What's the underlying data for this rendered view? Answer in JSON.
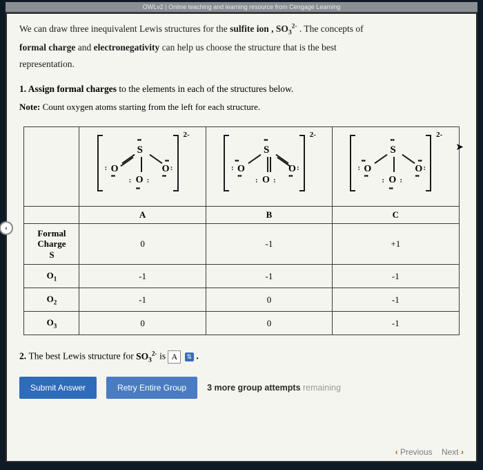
{
  "topbar": "OWLv2 | Online teaching and learning resource from Cengage Learning",
  "intro": {
    "line1_a": "We can draw three inequivalent Lewis structures for the ",
    "line1_b": "sulfite ion , SO",
    "line1_c": " . The concepts of",
    "line2_a": "formal charge",
    "line2_b": " and ",
    "line2_c": "electronegativity",
    "line2_d": " can help us choose the structure that is the best",
    "line3": "representation."
  },
  "q1": {
    "num": "1. ",
    "bold": "Assign formal charges",
    "rest": " to the elements in each of the structures below."
  },
  "note": {
    "label": "Note:",
    "text": " Count oxygen atoms starting from the left for each structure."
  },
  "charge_label": "2-",
  "columns": {
    "A": "A",
    "B": "B",
    "C": "C"
  },
  "rows": {
    "fc_s": "Formal Charge S",
    "o1": "O₁",
    "o2": "O₂",
    "o3": "O₃"
  },
  "values": {
    "A": {
      "S": "0",
      "O1": "-1",
      "O2": "-1",
      "O3": "0"
    },
    "B": {
      "S": "-1",
      "O1": "-1",
      "O2": "0",
      "O3": "0"
    },
    "C": {
      "S": "+1",
      "O1": "-1",
      "O2": "-1",
      "O3": "-1"
    }
  },
  "q2": {
    "num": "2. ",
    "text_a": "The best Lewis structure for ",
    "formula": "SO₃²⁻",
    "text_b": " is ",
    "selected": "A",
    "period": " ."
  },
  "buttons": {
    "submit": "Submit Answer",
    "retry": "Retry Entire Group"
  },
  "attempts": {
    "bold": "3 more group attempts",
    "faded": " remaining"
  },
  "nav": {
    "prev": "Previous",
    "next": "Next"
  },
  "side_badge": "‹"
}
